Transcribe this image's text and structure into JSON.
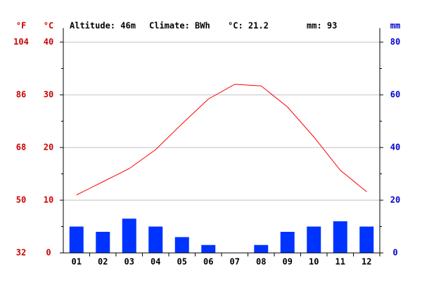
{
  "chart_data": {
    "type": "climate",
    "header": {
      "altitude": "Altitude: 46m",
      "climate": "Climate: BWh",
      "temp": "°C: 21.2",
      "precip": "mm: 93"
    },
    "unit_f": "°F",
    "unit_c": "°C",
    "unit_mm": "mm",
    "categories": [
      "01",
      "02",
      "03",
      "04",
      "05",
      "06",
      "07",
      "08",
      "09",
      "10",
      "11",
      "12"
    ],
    "series": [
      {
        "name": "°C",
        "color": "#ff0000",
        "axis": "y",
        "values": [
          11.0,
          13.5,
          16.0,
          19.6,
          24.5,
          29.2,
          32.0,
          31.7,
          27.7,
          22.0,
          15.7,
          11.6
        ]
      },
      {
        "name": "mm",
        "color": "#0033ff",
        "axis": "y2",
        "values": [
          10,
          8,
          13,
          10,
          6,
          3,
          0,
          3,
          8,
          10,
          12,
          10
        ]
      }
    ],
    "ylim": [
      0,
      40
    ],
    "yticks": [
      0,
      10,
      20,
      30,
      40
    ],
    "yflim": [
      32,
      104
    ],
    "yfticks": [
      32,
      50,
      68,
      86,
      104
    ],
    "y2lim": [
      0,
      80
    ],
    "y2ticks": [
      0,
      20,
      40,
      60,
      80
    ],
    "grid": true
  }
}
